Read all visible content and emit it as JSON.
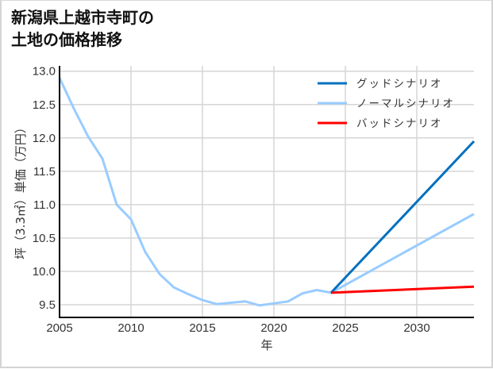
{
  "title_line1": "新潟県上越市寺町の",
  "title_line2": "土地の価格推移",
  "colors": {
    "good": "#0070c0",
    "normal": "#99ccff",
    "bad": "#ff0000",
    "grid": "#d6d6d6",
    "axis": "#000000"
  },
  "chart_data": {
    "type": "line",
    "title": "新潟県上越市寺町の土地の価格推移",
    "xlabel": "年",
    "ylabel": "坪（3.3㎡）単価（万円）",
    "xlim": [
      2005,
      2034
    ],
    "ylim": [
      9.31,
      13.08
    ],
    "grid": true,
    "legend_position": "upper right",
    "x_ticks": [
      2005,
      2010,
      2015,
      2020,
      2025,
      2030
    ],
    "x_tick_labels": [
      "2005",
      "2010",
      "2015",
      "2020",
      "2025",
      "2030"
    ],
    "y_ticks": [
      9.5,
      10.0,
      10.5,
      11.0,
      11.5,
      12.0,
      12.5,
      13.0
    ],
    "y_tick_labels": [
      "9.5",
      "10.0",
      "10.5",
      "11.0",
      "11.5",
      "12.0",
      "12.5",
      "13.0"
    ],
    "series": [
      {
        "name": "グッドシナリオ",
        "color": "#0070c0",
        "x": [
          2024,
          2034
        ],
        "values": [
          9.68,
          11.95
        ]
      },
      {
        "name": "ノーマルシナリオ",
        "color": "#99ccff",
        "x": [
          2005,
          2006,
          2007,
          2008,
          2009,
          2010,
          2011,
          2012,
          2013,
          2014,
          2015,
          2016,
          2017,
          2018,
          2019,
          2020,
          2021,
          2022,
          2023,
          2024,
          2034
        ],
        "values": [
          12.9,
          12.44,
          12.02,
          11.69,
          11.0,
          10.78,
          10.29,
          9.96,
          9.76,
          9.66,
          9.57,
          9.51,
          9.53,
          9.55,
          9.49,
          9.52,
          9.55,
          9.67,
          9.72,
          9.68,
          10.86
        ]
      },
      {
        "name": "バッドシナリオ",
        "color": "#ff0000",
        "x": [
          2024,
          2034
        ],
        "values": [
          9.68,
          9.77
        ]
      }
    ]
  }
}
